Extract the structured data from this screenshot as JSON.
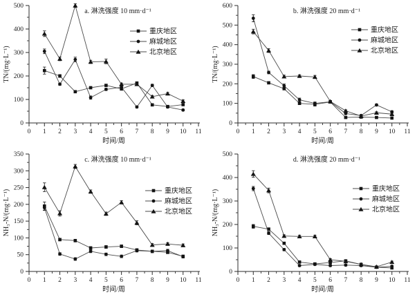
{
  "figure": {
    "background": "#ffffff",
    "axis_color": "#2b2b2b",
    "line_color": "#4a4a4a",
    "marker_color": "#141414",
    "text_color": "#1c1c1c"
  },
  "chart_data": [
    {
      "id": "a",
      "type": "line",
      "title": "a. 淋洗强度 10 mm·d⁻¹",
      "xlabel": "时间/周",
      "ylabel": "TN/(mg·L⁻¹)",
      "xlim": [
        0,
        11
      ],
      "ylim": [
        0,
        500
      ],
      "xtick_step": 1,
      "ytick_step": 100,
      "grid": false,
      "legend_pos": {
        "x": 188,
        "y": 45
      },
      "x": [
        1,
        2,
        3,
        4,
        5,
        6,
        7,
        8,
        9,
        10
      ],
      "series": [
        {
          "name": "重庆地区",
          "marker": "square",
          "values": [
            223,
            200,
            133,
            150,
            160,
            145,
            170,
            77,
            70,
            78
          ],
          "err": [
            15,
            6,
            4,
            5,
            5,
            6,
            4,
            4,
            4,
            4
          ]
        },
        {
          "name": "麻城地区",
          "marker": "circle",
          "values": [
            305,
            165,
            270,
            108,
            143,
            152,
            68,
            160,
            68,
            55
          ],
          "err": [
            10,
            5,
            10,
            7,
            5,
            5,
            4,
            5,
            4,
            4
          ]
        },
        {
          "name": "北京地区",
          "marker": "triangle",
          "values": [
            380,
            273,
            500,
            260,
            262,
            165,
            165,
            112,
            125,
            93
          ],
          "err": [
            12,
            8,
            8,
            7,
            10,
            5,
            5,
            5,
            5,
            5
          ]
        }
      ]
    },
    {
      "id": "b",
      "type": "line",
      "title": "b. 淋洗强度 20 mm·d⁻¹",
      "xlabel": "时间/周",
      "ylabel": "TN/(mg·L⁻¹)",
      "xlim": [
        0,
        11
      ],
      "ylim": [
        0,
        600
      ],
      "xtick_step": 1,
      "ytick_step": 100,
      "grid": false,
      "legend_pos": {
        "x": 206,
        "y": 43
      },
      "x": [
        1,
        2,
        3,
        4,
        5,
        6,
        7,
        8,
        9,
        10
      ],
      "series": [
        {
          "name": "重庆地区",
          "marker": "square",
          "values": [
            237,
            205,
            175,
            100,
            95,
            107,
            28,
            30,
            28,
            25
          ],
          "err": [
            10,
            6,
            6,
            6,
            9,
            5,
            4,
            4,
            4,
            4
          ]
        },
        {
          "name": "麻城地区",
          "marker": "circle",
          "values": [
            535,
            258,
            190,
            118,
            100,
            108,
            48,
            38,
            92,
            57
          ],
          "err": [
            18,
            7,
            9,
            9,
            7,
            5,
            4,
            4,
            5,
            5
          ]
        },
        {
          "name": "北京地区",
          "marker": "triangle",
          "values": [
            467,
            370,
            237,
            240,
            235,
            110,
            62,
            35,
            52,
            45
          ],
          "err": [
            12,
            10,
            7,
            6,
            8,
            5,
            5,
            4,
            5,
            5
          ]
        }
      ]
    },
    {
      "id": "c",
      "type": "line",
      "title": "c. 淋洗强度 10 mm·d⁻¹",
      "xlabel": "时间/周",
      "ylabel": "NH₃-N/(mg·L⁻¹)",
      "xlim": [
        0,
        11
      ],
      "ylim": [
        0,
        350
      ],
      "xtick_step": 1,
      "ytick_step": 50,
      "grid": false,
      "legend_pos": {
        "x": 210,
        "y": 61
      },
      "x": [
        1,
        2,
        3,
        4,
        5,
        6,
        7,
        8,
        9,
        10
      ],
      "series": [
        {
          "name": "重庆地区",
          "marker": "square",
          "values": [
            195,
            95,
            92,
            70,
            73,
            75,
            64,
            60,
            57,
            45
          ],
          "err": [
            12,
            4,
            4,
            4,
            4,
            4,
            4,
            4,
            4,
            4
          ]
        },
        {
          "name": "麻城地区",
          "marker": "circle",
          "values": [
            190,
            52,
            37,
            60,
            51,
            45,
            62,
            60,
            62,
            44
          ],
          "err": [
            8,
            4,
            4,
            4,
            4,
            4,
            4,
            4,
            4,
            4
          ]
        },
        {
          "name": "北京地区",
          "marker": "triangle",
          "values": [
            251,
            173,
            313,
            238,
            172,
            206,
            145,
            79,
            82,
            78
          ],
          "err": [
            13,
            8,
            6,
            5,
            5,
            5,
            6,
            4,
            4,
            4
          ]
        }
      ]
    },
    {
      "id": "d",
      "type": "line",
      "title": "d. 淋洗强度 20 mm·d⁻¹",
      "xlabel": "时间/周",
      "ylabel": "NH₃-N/(mg·L⁻¹)",
      "xlim": [
        0,
        11
      ],
      "ylim": [
        0,
        500
      ],
      "xtick_step": 1,
      "ytick_step": 100,
      "grid": false,
      "legend_pos": {
        "x": 208,
        "y": 58
      },
      "x": [
        1,
        2,
        3,
        4,
        5,
        6,
        7,
        8,
        9,
        10
      ],
      "series": [
        {
          "name": "重庆地区",
          "marker": "square",
          "values": [
            192,
            180,
            120,
            40,
            32,
            38,
            45,
            30,
            18,
            15
          ],
          "err": [
            8,
            6,
            5,
            4,
            4,
            4,
            4,
            4,
            4,
            4
          ]
        },
        {
          "name": "麻城地区",
          "marker": "circle",
          "values": [
            353,
            163,
            93,
            25,
            30,
            25,
            27,
            25,
            18,
            22
          ],
          "err": [
            9,
            6,
            5,
            4,
            4,
            4,
            4,
            4,
            4,
            4
          ]
        },
        {
          "name": "北京地区",
          "marker": "triangle",
          "values": [
            415,
            345,
            151,
            149,
            149,
            50,
            43,
            30,
            20,
            40
          ],
          "err": [
            14,
            10,
            5,
            5,
            5,
            4,
            4,
            4,
            4,
            4
          ]
        }
      ]
    }
  ]
}
